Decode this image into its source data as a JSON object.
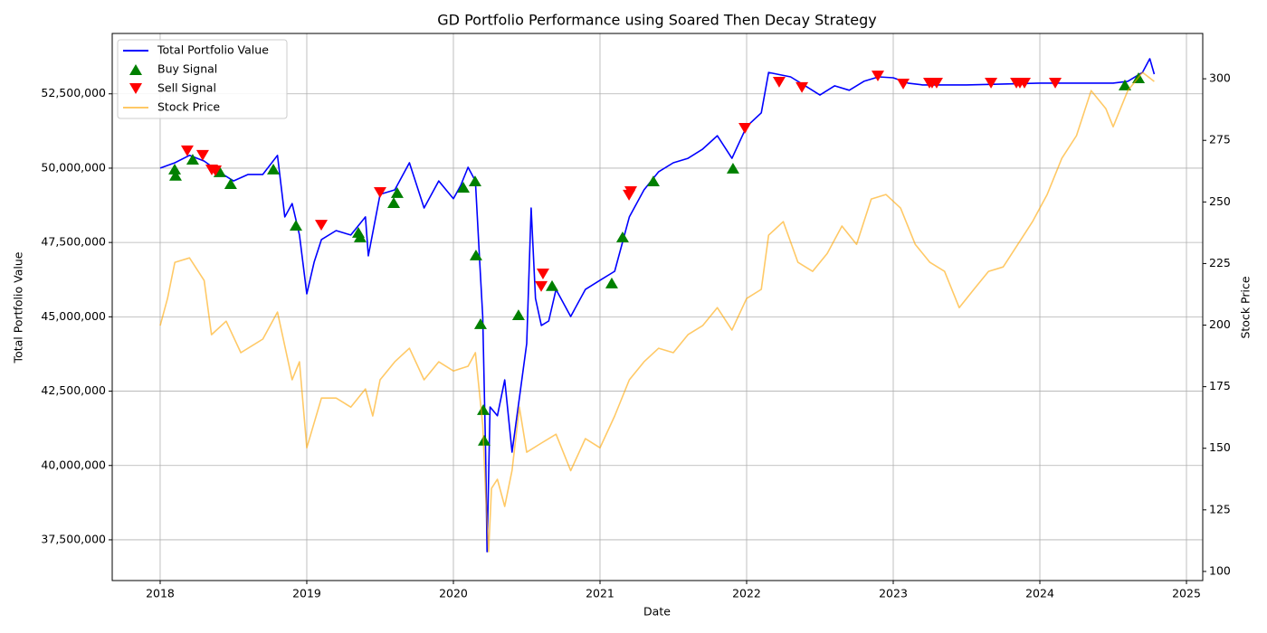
{
  "chart_data": {
    "type": "line",
    "title": "GD Portfolio Performance using Soared Then Decay Strategy",
    "x_label": "Date",
    "y_label": "Total Portfolio Value",
    "y2_label": "Stock Price",
    "xlim": [
      2017.673,
      2025.111
    ],
    "xticks": [
      2018,
      2019,
      2020,
      2021,
      2022,
      2023,
      2024,
      2025
    ],
    "ylim": [
      36130000,
      54530000
    ],
    "yticks": [
      {
        "value": 37500000,
        "label": "37,500,000"
      },
      {
        "value": 40000000,
        "label": "40,000,000"
      },
      {
        "value": 42500000,
        "label": "42,500,000"
      },
      {
        "value": 45000000,
        "label": "45,000,000"
      },
      {
        "value": 47500000,
        "label": "47,500,000"
      },
      {
        "value": 50000000,
        "label": "50,000,000"
      },
      {
        "value": 52500000,
        "label": "52,500,000"
      }
    ],
    "y2lim": [
      96.3,
      318.4
    ],
    "y2ticks": [
      100,
      125,
      150,
      175,
      200,
      225,
      250,
      275,
      300
    ],
    "grid": true,
    "legend": "upper left",
    "series": [
      {
        "name": "Total Portfolio Value",
        "type": "line",
        "color": "#0000ff",
        "x": [
          2018.0,
          2018.1,
          2018.2,
          2018.3,
          2018.4,
          2018.5,
          2018.6,
          2018.7,
          2018.8,
          2018.85,
          2018.9,
          2018.95,
          2019.0,
          2019.05,
          2019.1,
          2019.2,
          2019.3,
          2019.4,
          2019.42,
          2019.5,
          2019.6,
          2019.7,
          2019.8,
          2019.9,
          2020.0,
          2020.05,
          2020.1,
          2020.15,
          2020.18,
          2020.2,
          2020.22,
          2020.23,
          2020.25,
          2020.3,
          2020.35,
          2020.4,
          2020.45,
          2020.5,
          2020.53,
          2020.56,
          2020.6,
          2020.65,
          2020.7,
          2020.8,
          2020.9,
          2021.0,
          2021.1,
          2021.2,
          2021.3,
          2021.4,
          2021.5,
          2021.6,
          2021.7,
          2021.8,
          2021.9,
          2022.0,
          2022.1,
          2022.15,
          2022.3,
          2022.4,
          2022.5,
          2022.6,
          2022.7,
          2022.8,
          2022.9,
          2023.0,
          2023.1,
          2023.2,
          2023.5,
          2024.0,
          2024.5,
          2024.6,
          2024.7,
          2024.75,
          2024.78
        ],
        "values": [
          50000000,
          50180000,
          50430000,
          50240000,
          49880000,
          49570000,
          49790000,
          49790000,
          50430000,
          48360000,
          48810000,
          47750000,
          45770000,
          46840000,
          47600000,
          47900000,
          47750000,
          48360000,
          47050000,
          49120000,
          49270000,
          50180000,
          48660000,
          49570000,
          48970000,
          49420000,
          50030000,
          49570000,
          46840000,
          45010000,
          40450000,
          37100000,
          41970000,
          41670000,
          42880000,
          40450000,
          42270000,
          44100000,
          48660000,
          45620000,
          44710000,
          44860000,
          45920000,
          45010000,
          45920000,
          46230000,
          46530000,
          48360000,
          49270000,
          49880000,
          50180000,
          50330000,
          50640000,
          51090000,
          50330000,
          51400000,
          51860000,
          53220000,
          53070000,
          52770000,
          52460000,
          52770000,
          52620000,
          52920000,
          53070000,
          53040000,
          52860000,
          52800000,
          52800000,
          52860000,
          52860000,
          52920000,
          53220000,
          53680000,
          53160000
        ]
      },
      {
        "name": "Buy Signal",
        "type": "scatter",
        "marker": "^",
        "color": "#008000",
        "x": [
          2018.099,
          2018.105,
          2018.222,
          2018.407,
          2018.481,
          2018.772,
          2018.926,
          2019.352,
          2019.364,
          2019.593,
          2019.617,
          2020.068,
          2020.148,
          2020.154,
          2020.185,
          2020.204,
          2020.21,
          2020.444,
          2020.673,
          2021.08,
          2021.154,
          2021.364,
          2021.907,
          2024.58,
          2024.673
        ],
        "values": [
          49970000,
          49760000,
          50300000,
          49880000,
          49480000,
          49970000,
          48080000,
          47840000,
          47690000,
          48840000,
          49180000,
          49360000,
          49570000,
          47080000,
          44770000,
          41880000,
          40850000,
          45070000,
          46050000,
          46140000,
          47690000,
          49570000,
          50000000,
          52800000,
          53040000
        ]
      },
      {
        "name": "Sell Signal",
        "type": "scatter",
        "marker": "v",
        "color": "#ff0000",
        "x": [
          2018.185,
          2018.29,
          2018.352,
          2018.377,
          2019.099,
          2019.5,
          2020.599,
          2020.611,
          2021.198,
          2021.21,
          2021.988,
          2022.222,
          2022.377,
          2022.895,
          2023.068,
          2023.247,
          2023.265,
          2023.296,
          2023.667,
          2023.84,
          2023.864,
          2023.895,
          2024.105
        ],
        "values": [
          50580000,
          50430000,
          49940000,
          49910000,
          48080000,
          49180000,
          46020000,
          46440000,
          49090000,
          49210000,
          51340000,
          52890000,
          52710000,
          53100000,
          52830000,
          52860000,
          52860000,
          52860000,
          52860000,
          52860000,
          52860000,
          52860000,
          52860000
        ]
      },
      {
        "name": "Stock Price",
        "type": "line",
        "axis": "y2",
        "color": "#ffa500",
        "alpha": 0.6,
        "x": [
          2018.0,
          2018.05,
          2018.1,
          2018.2,
          2018.3,
          2018.35,
          2018.45,
          2018.55,
          2018.7,
          2018.8,
          2018.9,
          2018.95,
          2019.0,
          2019.1,
          2019.2,
          2019.3,
          2019.4,
          2019.45,
          2019.5,
          2019.6,
          2019.7,
          2019.8,
          2019.9,
          2020.0,
          2020.1,
          2020.15,
          2020.2,
          2020.22,
          2020.24,
          2020.26,
          2020.3,
          2020.35,
          2020.4,
          2020.45,
          2020.5,
          2020.6,
          2020.7,
          2020.8,
          2020.9,
          2021.0,
          2021.1,
          2021.2,
          2021.3,
          2021.4,
          2021.5,
          2021.6,
          2021.7,
          2021.8,
          2021.9,
          2022.0,
          2022.1,
          2022.15,
          2022.25,
          2022.35,
          2022.45,
          2022.55,
          2022.65,
          2022.75,
          2022.85,
          2022.95,
          2023.05,
          2023.15,
          2023.25,
          2023.35,
          2023.45,
          2023.55,
          2023.65,
          2023.75,
          2023.85,
          2023.95,
          2024.05,
          2024.15,
          2024.25,
          2024.35,
          2024.45,
          2024.5,
          2024.6,
          2024.7,
          2024.78
        ],
        "values": [
          199.8,
          210.8,
          225.5,
          227.3,
          218.1,
          196.1,
          201.6,
          188.8,
          194.3,
          205.3,
          177.8,
          185.1,
          150.2,
          170.4,
          170.4,
          166.7,
          174.1,
          163.1,
          177.8,
          185.1,
          190.6,
          177.8,
          185.1,
          181.4,
          183.3,
          188.8,
          159.4,
          131.9,
          108,
          133.7,
          137.4,
          126.4,
          141.0,
          166.7,
          148.4,
          152.1,
          155.7,
          140.9,
          153.9,
          150.2,
          163.1,
          177.8,
          185.1,
          190.6,
          188.8,
          196.1,
          199.8,
          207.1,
          198.0,
          210.8,
          214.5,
          236.5,
          242.0,
          225.5,
          221.8,
          229.1,
          240.2,
          232.8,
          251.2,
          253.0,
          247.5,
          232.8,
          225.5,
          221.8,
          207.1,
          214.5,
          221.8,
          223.6,
          232.8,
          242.0,
          253.0,
          267.7,
          276.9,
          295.2,
          287.9,
          280.5,
          295.2,
          302.6,
          298.9
        ]
      }
    ]
  }
}
